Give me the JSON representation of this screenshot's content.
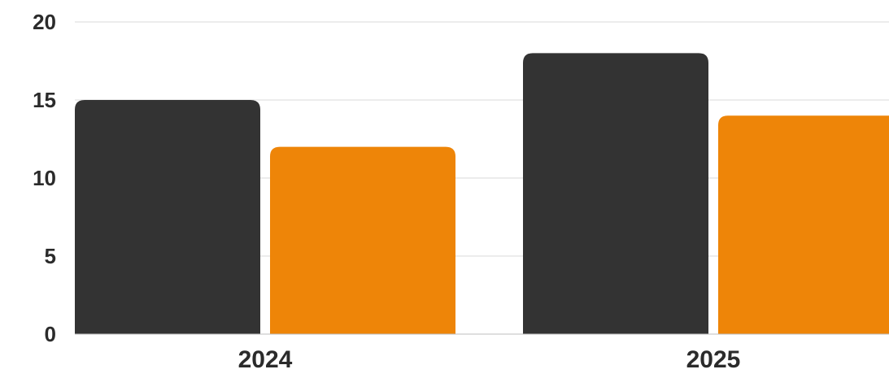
{
  "chart_data": {
    "type": "bar",
    "categories": [
      "2024",
      "2025"
    ],
    "series": [
      {
        "color": "#333333",
        "values": [
          15,
          18
        ]
      },
      {
        "color": "#ee8508",
        "values": [
          12,
          14
        ]
      }
    ],
    "yticks": [
      "0",
      "5",
      "10",
      "15",
      "20"
    ],
    "ylim": [
      0,
      20
    ],
    "grid": true,
    "legend": "none"
  }
}
